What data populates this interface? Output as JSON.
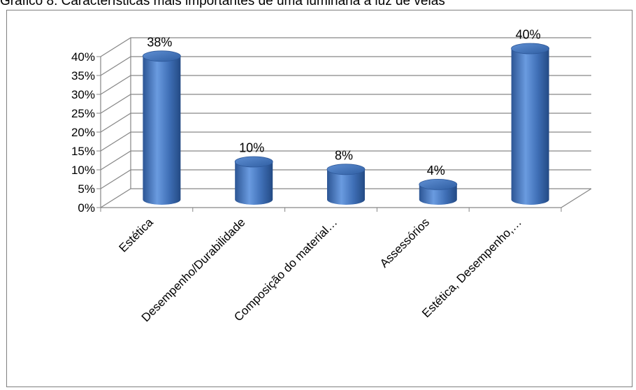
{
  "chart_data": {
    "type": "bar",
    "title": "Gráfico 8: Características mais importantes de uma luminária à luz de velas",
    "categories": [
      "Estética",
      "Desempenho/Durabilidade",
      "Composição do material…",
      "Assessórios",
      "Estética, Desempenho,…"
    ],
    "values": [
      0.38,
      0.1,
      0.08,
      0.04,
      0.4
    ],
    "data_labels": [
      "38%",
      "10%",
      "8%",
      "4%",
      "40%"
    ],
    "ylim": [
      0,
      0.4
    ],
    "ticks": [
      {
        "value": 0,
        "label": "0%"
      },
      {
        "value": 0.05,
        "label": "5%"
      },
      {
        "value": 0.1,
        "label": "10%"
      },
      {
        "value": 0.15,
        "label": "15%"
      },
      {
        "value": 0.2,
        "label": "20%"
      },
      {
        "value": 0.25,
        "label": "25%"
      },
      {
        "value": 0.3,
        "label": "30%"
      },
      {
        "value": 0.35,
        "label": "35%"
      },
      {
        "value": 0.4,
        "label": "40%"
      }
    ],
    "xlabel": "",
    "ylabel": "",
    "grid": true,
    "legend": "none",
    "style": "3d-cylinder",
    "bar_color": "#4a7ec4"
  }
}
